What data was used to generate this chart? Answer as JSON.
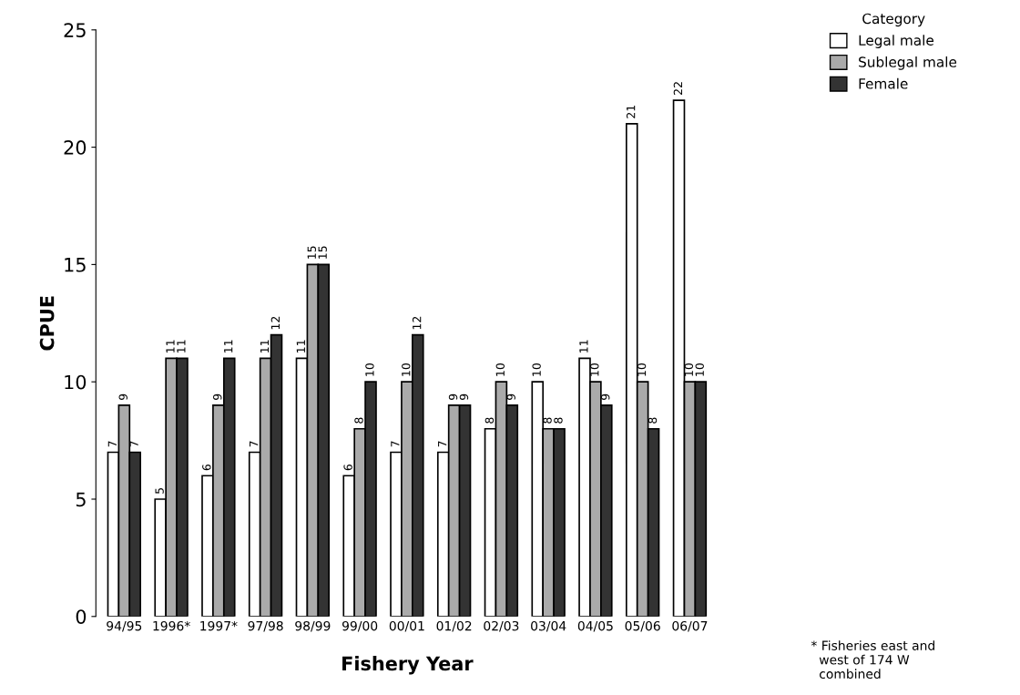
{
  "chart_data": {
    "type": "bar",
    "xlabel": "Fishery Year",
    "ylabel": "CPUE",
    "categories": [
      "94/95",
      "1996*",
      "1997*",
      "97/98",
      "98/99",
      "99/00",
      "00/01",
      "01/02",
      "02/03",
      "03/04",
      "04/05",
      "05/06",
      "06/07"
    ],
    "series": [
      {
        "name": "Legal male",
        "color": "#ffffff",
        "values": [
          7,
          5,
          6,
          7,
          11,
          6,
          7,
          7,
          8,
          10,
          11,
          21,
          22
        ]
      },
      {
        "name": "Sublegal male",
        "color": "#aaaaaa",
        "values": [
          9,
          11,
          9,
          11,
          15,
          8,
          10,
          9,
          10,
          8,
          10,
          10,
          10
        ]
      },
      {
        "name": "Female",
        "color": "#333333",
        "values": [
          7,
          11,
          11,
          12,
          15,
          10,
          12,
          9,
          9,
          8,
          9,
          8,
          10
        ]
      }
    ],
    "ylim": [
      0,
      25
    ],
    "yticks": [
      0,
      5,
      10,
      15,
      20,
      25
    ],
    "data_labels": true,
    "legend": "top right",
    "legend_title": "Category",
    "grid": false,
    "annotations": [
      "* Fisheries east and\n  west of 174 W\n  combined"
    ]
  }
}
